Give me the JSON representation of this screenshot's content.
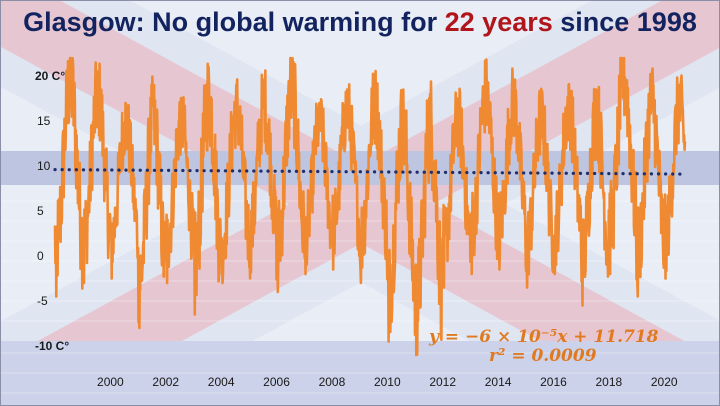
{
  "title": {
    "prefix": "Glasgow: No global warming for ",
    "highlight": "22 years",
    "suffix": " since 1998"
  },
  "colors": {
    "series": "#f08a32",
    "trend": "#1f2f6b",
    "title": "#13235f",
    "highlight": "#b0151c",
    "equation": "#e07a21"
  },
  "equation": {
    "line1": "y = −6 × 10⁻⁵x + 11.718",
    "line2": "r² = 0.0009"
  },
  "chart_data": {
    "type": "line",
    "title": "Glasgow: No global warming for 22 years since 1998",
    "xlabel": "",
    "ylabel": "",
    "y_ticks": [
      "20 C°",
      "15",
      "10",
      "5",
      "0",
      "-5",
      "-10 C°"
    ],
    "y_tick_values": [
      20,
      15,
      10,
      5,
      0,
      -5,
      -10
    ],
    "x_ticks": [
      "2000",
      "2002",
      "2004",
      "2006",
      "2008",
      "2010",
      "2012",
      "2014",
      "2016",
      "2018",
      "2020"
    ],
    "x_tick_values": [
      2000,
      2002,
      2004,
      2006,
      2008,
      2010,
      2012,
      2014,
      2016,
      2018,
      2020
    ],
    "xlim": [
      1998.0,
      2020.75
    ],
    "ylim": [
      -11,
      22
    ],
    "series": [
      {
        "kind": "daily temperature (approximate seasonal envelope)",
        "years": [
          1998,
          1999,
          2000,
          2001,
          2002,
          2003,
          2004,
          2005,
          2006,
          2007,
          2008,
          2009,
          2010,
          2011,
          2012,
          2013,
          2014,
          2015,
          2016,
          2017,
          2018,
          2019,
          2020
        ],
        "annual_max": [
          22.5,
          20.5,
          17.0,
          18.0,
          17.5,
          21.0,
          19.0,
          19.5,
          21.5,
          17.0,
          18.5,
          19.5,
          17.5,
          18.0,
          17.5,
          20.5,
          19.5,
          17.5,
          19.0,
          18.5,
          22.5,
          20.0,
          19.0
        ],
        "annual_min": [
          -4.5,
          -3.0,
          -2.5,
          -8.0,
          -3.0,
          -6.5,
          -3.0,
          -2.5,
          -4.0,
          -2.0,
          -1.5,
          -3.0,
          -9.5,
          -11.5,
          -3.5,
          -2.0,
          -1.5,
          -3.5,
          -2.0,
          -5.5,
          -2.0,
          -4.5,
          -2.5
        ]
      },
      {
        "kind": "linear trend",
        "x": [
          1998.0,
          2020.75
        ],
        "y": [
          9.6,
          9.1
        ]
      }
    ],
    "grid": false,
    "legend": "none"
  }
}
